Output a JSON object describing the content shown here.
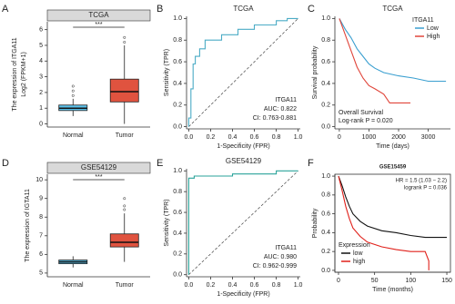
{
  "chart_data": [
    {
      "type": "box",
      "panel": "A",
      "title": "TCGA",
      "ylabel": "The expression of ITGA11",
      "ylabel2": "Log2 (FPKM+1)",
      "categories": [
        "Normal",
        "Tumor"
      ],
      "colors": [
        "#5bc0e8",
        "#e0533f"
      ],
      "boxes": [
        {
          "min": 0.5,
          "q1": 0.85,
          "median": 1.0,
          "q3": 1.2,
          "max": 1.6,
          "outliers": [
            1.8,
            2.1,
            2.4
          ]
        },
        {
          "min": 0.0,
          "q1": 1.4,
          "median": 2.05,
          "q3": 2.85,
          "max": 5.0,
          "outliers": [
            5.2,
            5.5
          ]
        }
      ],
      "significance": "***",
      "ylim": [
        -0.2,
        6.5
      ],
      "yticks": [
        0,
        1,
        2,
        3,
        4,
        5,
        6
      ]
    },
    {
      "type": "roc",
      "panel": "B",
      "title": "TCGA",
      "xlabel": "1-Specificity (FPR)",
      "ylabel": "Sensitivity (TPR)",
      "color": "#4bacc6",
      "annotations": [
        "ITGA11",
        "AUC: 0.822",
        "CI: 0.763-0.881"
      ],
      "x": [
        0,
        0,
        0.02,
        0.02,
        0.04,
        0.04,
        0.06,
        0.06,
        0.1,
        0.1,
        0.15,
        0.15,
        0.3,
        0.3,
        0.45,
        0.45,
        0.6,
        0.6,
        0.8,
        0.8,
        0.9,
        0.9,
        1
      ],
      "values": [
        0,
        0.08,
        0.08,
        0.35,
        0.35,
        0.58,
        0.58,
        0.65,
        0.65,
        0.72,
        0.72,
        0.8,
        0.8,
        0.85,
        0.85,
        0.9,
        0.9,
        0.94,
        0.94,
        0.98,
        0.98,
        1,
        1
      ],
      "xlim": [
        -0.02,
        1.02
      ],
      "ylim": [
        -0.02,
        1.02
      ],
      "xticks": [
        {
          "value": 0,
          "label": "0.0"
        },
        0.2,
        0.4,
        0.6,
        0.8,
        {
          "value": 1,
          "label": "1.0"
        }
      ],
      "yticks": [
        {
          "value": 0,
          "label": "0.0"
        },
        0.2,
        0.4,
        0.6,
        0.8,
        {
          "value": 1,
          "label": "1.0"
        }
      ]
    },
    {
      "type": "km",
      "panel": "C",
      "title": "TCGA",
      "xlabel": "Time (days)",
      "ylabel": "Survival probability",
      "legend_title": "ITGA11",
      "legend": "top-right",
      "annotations": [
        "Overall Survival",
        "Log-rank  P = 0.020"
      ],
      "series": [
        {
          "name": "Low",
          "color": "#3a9fd0",
          "x": [
            0,
            200,
            400,
            600,
            800,
            1000,
            1200,
            1500,
            2000,
            2500,
            3000,
            3600
          ],
          "values": [
            1,
            0.9,
            0.82,
            0.72,
            0.65,
            0.58,
            0.54,
            0.5,
            0.47,
            0.45,
            0.42,
            0.42
          ]
        },
        {
          "name": "High",
          "color": "#e0453a",
          "x": [
            0,
            200,
            400,
            600,
            800,
            1000,
            1200,
            1500,
            1700,
            2000,
            2400
          ],
          "values": [
            1,
            0.85,
            0.7,
            0.55,
            0.45,
            0.38,
            0.35,
            0.3,
            0.22,
            0.22,
            0.22
          ]
        }
      ],
      "xlim": [
        -150,
        3750
      ],
      "ylim": [
        -0.02,
        1.02
      ],
      "xticks": [
        0,
        1000,
        2000,
        3000
      ],
      "yticks": [
        {
          "value": 0,
          "label": "0.0"
        },
        0.2,
        0.4,
        0.6,
        0.8,
        {
          "value": 1,
          "label": "1.0"
        }
      ]
    },
    {
      "type": "box",
      "panel": "D",
      "title": "GSE54129",
      "ylabel": "The expression of IGTA11",
      "categories": [
        "Normal",
        "Tumor"
      ],
      "colors": [
        "#5bc0e8",
        "#e0533f"
      ],
      "boxes": [
        {
          "min": 5.3,
          "q1": 5.5,
          "median": 5.6,
          "q3": 5.7,
          "max": 5.9,
          "outliers": []
        },
        {
          "min": 5.6,
          "q1": 6.4,
          "median": 6.65,
          "q3": 7.1,
          "max": 8.2,
          "outliers": [
            8.4,
            8.6,
            9.0
          ]
        }
      ],
      "significance": "***",
      "ylim": [
        4.8,
        10.3
      ],
      "yticks": [
        5,
        6,
        7,
        8,
        9,
        10
      ]
    },
    {
      "type": "roc",
      "panel": "E",
      "title": "GSE54129",
      "xlabel": "1-Specificity (FPR)",
      "ylabel": "Sensitivity (TPR)",
      "color": "#2aa39a",
      "annotations": [
        "ITGA11",
        "AUC: 0.980",
        "CI: 0.962-0.999"
      ],
      "x": [
        0,
        0,
        0.05,
        0.05,
        0.4,
        0.4,
        0.8,
        0.8,
        1
      ],
      "values": [
        0,
        0.93,
        0.93,
        0.95,
        0.95,
        0.97,
        0.97,
        1,
        1
      ],
      "xlim": [
        -0.02,
        1.02
      ],
      "ylim": [
        -0.02,
        1.02
      ],
      "xticks": [
        {
          "value": 0,
          "label": "0.0"
        },
        0.2,
        0.4,
        0.6,
        0.8,
        {
          "value": 1,
          "label": "1.0"
        }
      ],
      "yticks": [
        {
          "value": 0,
          "label": "0.0"
        },
        0.2,
        0.4,
        0.6,
        0.8,
        {
          "value": 1,
          "label": "1.0"
        }
      ]
    },
    {
      "type": "km",
      "panel": "F",
      "title": "GSE15459",
      "xlabel": "Time (months)",
      "ylabel": "Probability",
      "legend_title": "Expression",
      "legend": "bottom-left",
      "annotations": [
        "HR = 1.5 (1.03 − 2.2)",
        "logrank P = 0.036"
      ],
      "series": [
        {
          "name": "low",
          "color": "#111111",
          "x": [
            0,
            5,
            10,
            15,
            20,
            30,
            40,
            60,
            80,
            100,
            120,
            150
          ],
          "values": [
            1,
            0.9,
            0.78,
            0.68,
            0.6,
            0.52,
            0.47,
            0.42,
            0.4,
            0.37,
            0.35,
            0.35
          ]
        },
        {
          "name": "high",
          "color": "#e0201a",
          "x": [
            0,
            5,
            10,
            15,
            20,
            30,
            40,
            60,
            80,
            100,
            120,
            125,
            125
          ],
          "values": [
            1,
            0.85,
            0.68,
            0.55,
            0.45,
            0.36,
            0.3,
            0.25,
            0.22,
            0.2,
            0.2,
            0.1,
            0
          ]
        }
      ],
      "xlim": [
        -5,
        155
      ],
      "ylim": [
        -0.02,
        1.02
      ],
      "xticks": [
        0,
        50,
        100,
        150
      ],
      "yticks": [
        {
          "value": 0,
          "label": "0.0"
        },
        0.2,
        0.4,
        0.6,
        0.8,
        {
          "value": 1,
          "label": "1.0"
        }
      ]
    }
  ]
}
